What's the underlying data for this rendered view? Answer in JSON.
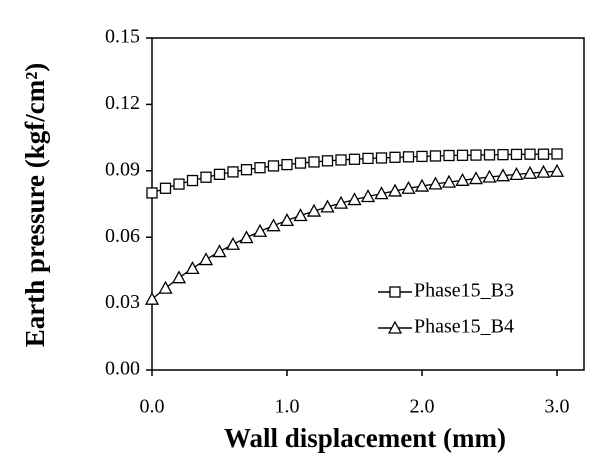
{
  "chart_data": {
    "type": "line",
    "x_label": "Wall displacement (mm)",
    "y_label": "Earth pressure (kgf/cm²)",
    "x": [
      0,
      0.1,
      0.2,
      0.3,
      0.4,
      0.5,
      0.6,
      0.7,
      0.8,
      0.9,
      1.0,
      1.1,
      1.2,
      1.3,
      1.4,
      1.5,
      1.6,
      1.7,
      1.8,
      1.9,
      2.0,
      2.1,
      2.2,
      2.3,
      2.4,
      2.5,
      2.6,
      2.7,
      2.8,
      2.9,
      3.0
    ],
    "series": [
      {
        "name": "Phase15_B3",
        "color": "#000000",
        "marker": "square",
        "values": [
          0.08,
          0.0821,
          0.084,
          0.0856,
          0.0871,
          0.0884,
          0.0895,
          0.0905,
          0.0914,
          0.0922,
          0.0928,
          0.0935,
          0.094,
          0.0945,
          0.0949,
          0.0952,
          0.0956,
          0.0958,
          0.0961,
          0.0963,
          0.0965,
          0.0967,
          0.0969,
          0.097,
          0.0971,
          0.0972,
          0.0973,
          0.0974,
          0.0975,
          0.0975,
          0.0976
        ]
      },
      {
        "name": "Phase15_B4",
        "color": "#000000",
        "marker": "triangle",
        "values": [
          0.032,
          0.037,
          0.0417,
          0.0459,
          0.0499,
          0.0535,
          0.0568,
          0.0598,
          0.0627,
          0.0652,
          0.0676,
          0.0698,
          0.0718,
          0.0737,
          0.0754,
          0.077,
          0.0784,
          0.0797,
          0.0809,
          0.0821,
          0.0831,
          0.0841,
          0.0849,
          0.0857,
          0.0865,
          0.0872,
          0.0878,
          0.0884,
          0.0889,
          0.0894,
          0.0898
        ]
      }
    ],
    "xlim": [
      0,
      3.2
    ],
    "xticks": [
      {
        "value": 0,
        "label": "0.0"
      },
      {
        "value": 1,
        "label": "1.0"
      },
      {
        "value": 2,
        "label": "2.0"
      },
      {
        "value": 3,
        "label": "3.0"
      }
    ],
    "ylim": [
      0,
      0.15
    ],
    "yticks": [
      {
        "value": 0,
        "label": "0.00"
      },
      {
        "value": 0.03,
        "label": "0.03"
      },
      {
        "value": 0.06,
        "label": "0.06"
      },
      {
        "value": 0.09,
        "label": "0.09"
      },
      {
        "value": 0.12,
        "label": "0.12"
      },
      {
        "value": 0.15,
        "label": "0.15"
      }
    ],
    "grid": false,
    "legend": "lower right"
  }
}
